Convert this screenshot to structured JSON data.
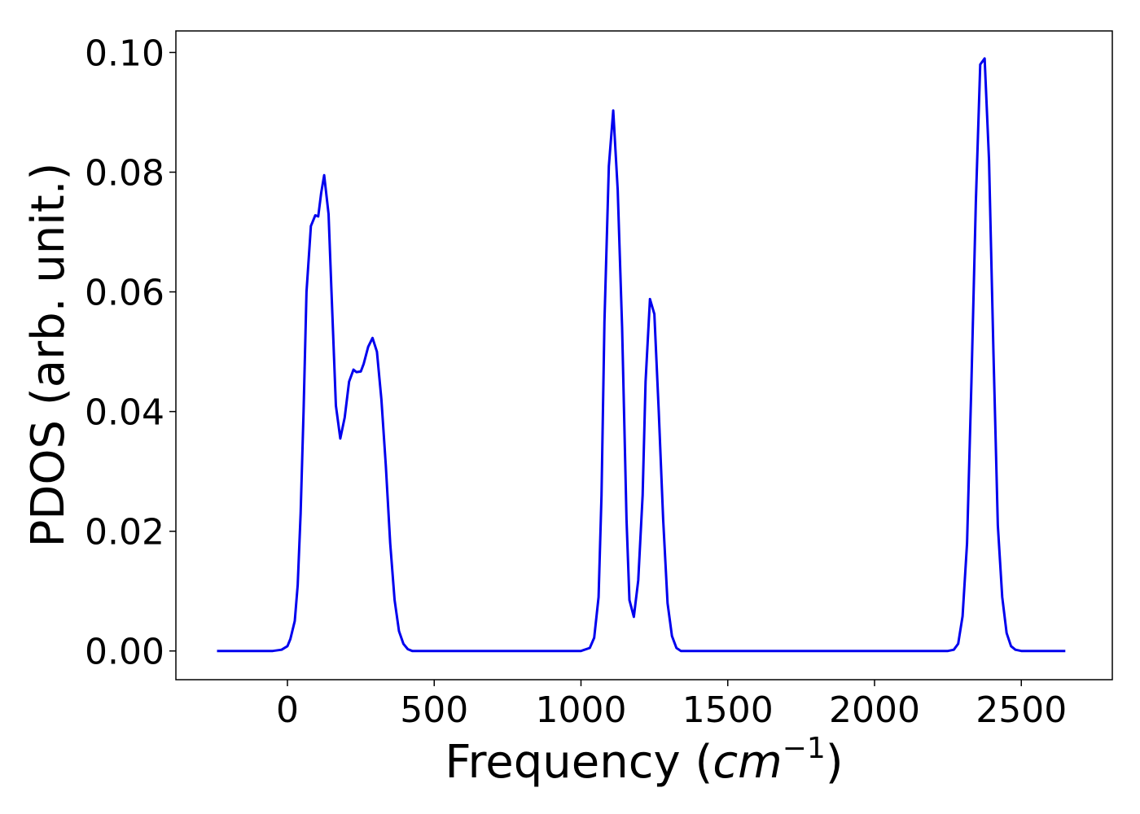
{
  "chart_data": {
    "type": "line",
    "title": "",
    "xlabel_main": "Frequency (",
    "xlabel_italic": "cm",
    "xlabel_sup": "−1",
    "xlabel_close": ")",
    "ylabel": "PDOS (arb. unit.)",
    "xlim": [
      -380,
      2810
    ],
    "ylim": [
      -0.0048,
      0.1036
    ],
    "xticks": [
      0,
      500,
      1000,
      1500,
      2000,
      2500
    ],
    "xtick_labels": [
      "0",
      "500",
      "1000",
      "1500",
      "2000",
      "2500"
    ],
    "yticks": [
      0.0,
      0.02,
      0.04,
      0.06,
      0.08,
      0.1
    ],
    "ytick_labels": [
      "0.00",
      "0.02",
      "0.04",
      "0.06",
      "0.08",
      "0.10"
    ],
    "grid": false,
    "legend": "none",
    "series": [
      {
        "color": "#0000ee",
        "x": [
          -240,
          -150,
          -50,
          -20,
          0,
          10,
          25,
          35,
          45,
          55,
          65,
          80,
          95,
          105,
          115,
          125,
          140,
          150,
          165,
          180,
          195,
          210,
          225,
          235,
          250,
          260,
          275,
          290,
          305,
          320,
          335,
          350,
          365,
          380,
          395,
          410,
          425,
          440,
          460,
          500,
          600,
          800,
          900,
          1000,
          1030,
          1045,
          1060,
          1070,
          1080,
          1095,
          1110,
          1125,
          1140,
          1155,
          1165,
          1180,
          1195,
          1210,
          1220,
          1235,
          1250,
          1265,
          1280,
          1295,
          1310,
          1325,
          1340,
          1355,
          1375,
          1450,
          1600,
          1800,
          2000,
          2150,
          2250,
          2270,
          2285,
          2300,
          2315,
          2330,
          2345,
          2360,
          2375,
          2390,
          2405,
          2420,
          2435,
          2450,
          2465,
          2480,
          2500,
          2550,
          2650
        ],
        "values": [
          0.0,
          0.0,
          0.0,
          0.0002,
          0.0008,
          0.002,
          0.005,
          0.011,
          0.023,
          0.04,
          0.06,
          0.071,
          0.0728,
          0.0726,
          0.0765,
          0.0795,
          0.073,
          0.06,
          0.041,
          0.0355,
          0.039,
          0.045,
          0.047,
          0.0466,
          0.0467,
          0.048,
          0.0508,
          0.0523,
          0.05,
          0.042,
          0.031,
          0.018,
          0.0085,
          0.0033,
          0.0012,
          0.0003,
          0.0,
          0.0,
          0.0,
          0.0,
          0.0,
          0.0,
          0.0,
          0.0,
          0.0005,
          0.0022,
          0.009,
          0.026,
          0.055,
          0.081,
          0.0903,
          0.077,
          0.054,
          0.022,
          0.0085,
          0.0057,
          0.0118,
          0.026,
          0.045,
          0.0588,
          0.0563,
          0.04,
          0.022,
          0.008,
          0.0025,
          0.0005,
          0.0,
          0.0,
          0.0,
          0.0,
          0.0,
          0.0,
          0.0,
          0.0,
          0.0,
          0.0002,
          0.0012,
          0.0058,
          0.018,
          0.045,
          0.075,
          0.098,
          0.099,
          0.082,
          0.05,
          0.021,
          0.009,
          0.003,
          0.0008,
          0.0002,
          0.0,
          0.0,
          0.0
        ]
      }
    ]
  }
}
